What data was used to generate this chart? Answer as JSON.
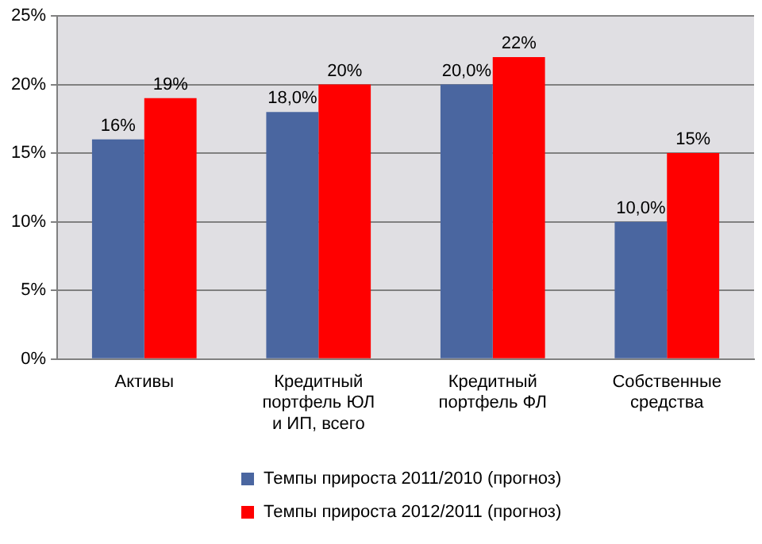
{
  "chart_data": {
    "type": "bar",
    "categories": [
      "Активы",
      "Кредитный портфель ЮЛ и ИП, всего",
      "Кредитный портфель ФЛ",
      "Собственные средства"
    ],
    "series": [
      {
        "name": "Темпы прироста 2011/2010 (прогноз)",
        "color": "#4a66a0",
        "values": [
          16,
          18,
          20,
          10
        ],
        "value_labels": [
          "16%",
          "18,0%",
          "20,0%",
          "10,0%"
        ]
      },
      {
        "name": "Темпы прироста 2012/2011 (прогноз)",
        "color": "#ff0000",
        "values": [
          19,
          20,
          22,
          15
        ],
        "value_labels": [
          "19%",
          "20%",
          "22%",
          "15%"
        ]
      }
    ],
    "ylim": [
      0,
      25
    ],
    "yticks": [
      {
        "value": 0,
        "label": "0%"
      },
      {
        "value": 5,
        "label": "5%"
      },
      {
        "value": 10,
        "label": "10%"
      },
      {
        "value": 15,
        "label": "15%"
      },
      {
        "value": 20,
        "label": "20%"
      },
      {
        "value": 25,
        "label": "25%"
      }
    ],
    "grid": "y",
    "legend": "bottom"
  }
}
